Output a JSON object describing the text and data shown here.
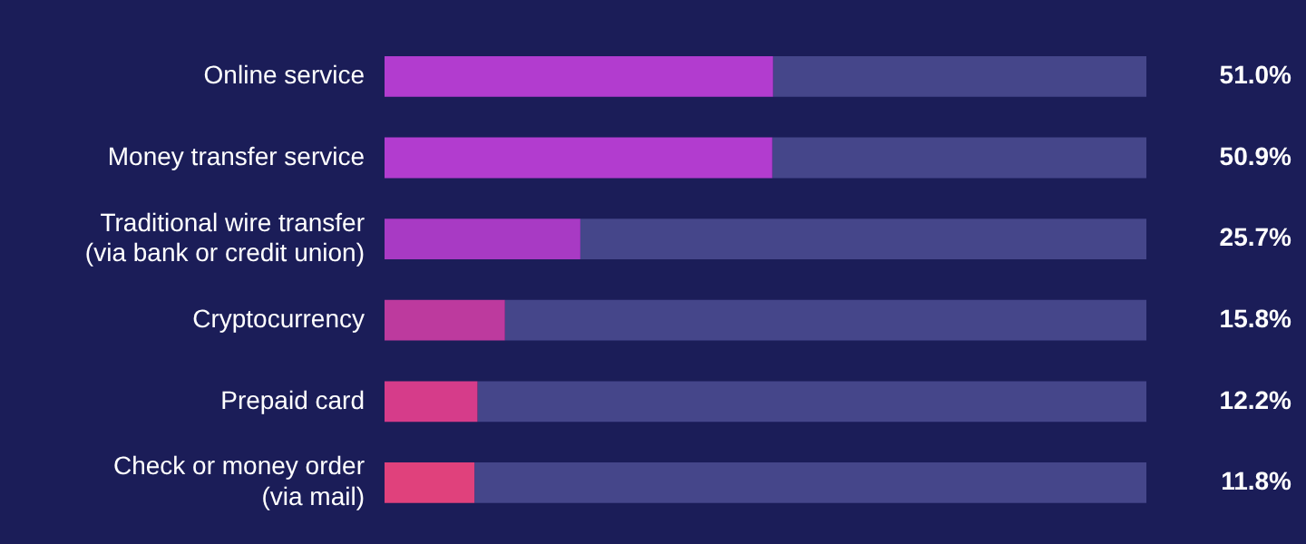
{
  "chart_data": {
    "type": "bar",
    "orientation": "horizontal",
    "categories": [
      "Online service",
      "Money transfer service",
      "Traditional wire transfer (via bank or credit union)",
      "Cryptocurrency",
      "Prepaid card",
      "Check or money order (via mail)"
    ],
    "series": [
      {
        "colors": [
          "#b23ccf",
          "#b23ccf",
          "#a83ac4",
          "#bd3a9e",
          "#d63c8a",
          "#e0417c"
        ],
        "values": [
          51.0,
          50.9,
          25.7,
          15.8,
          12.2,
          11.8
        ],
        "value_labels": [
          "51.0%",
          "50.9%",
          "25.7%",
          "15.8%",
          "12.2%",
          "11.8%"
        ]
      },
      {
        "color": "#45468a",
        "values": [
          49.0,
          49.1,
          74.3,
          84.2,
          87.8,
          88.2
        ]
      }
    ],
    "stacked": true,
    "xlim": [
      0,
      100
    ],
    "tick_labels": "y",
    "grid": false,
    "legend": false
  }
}
